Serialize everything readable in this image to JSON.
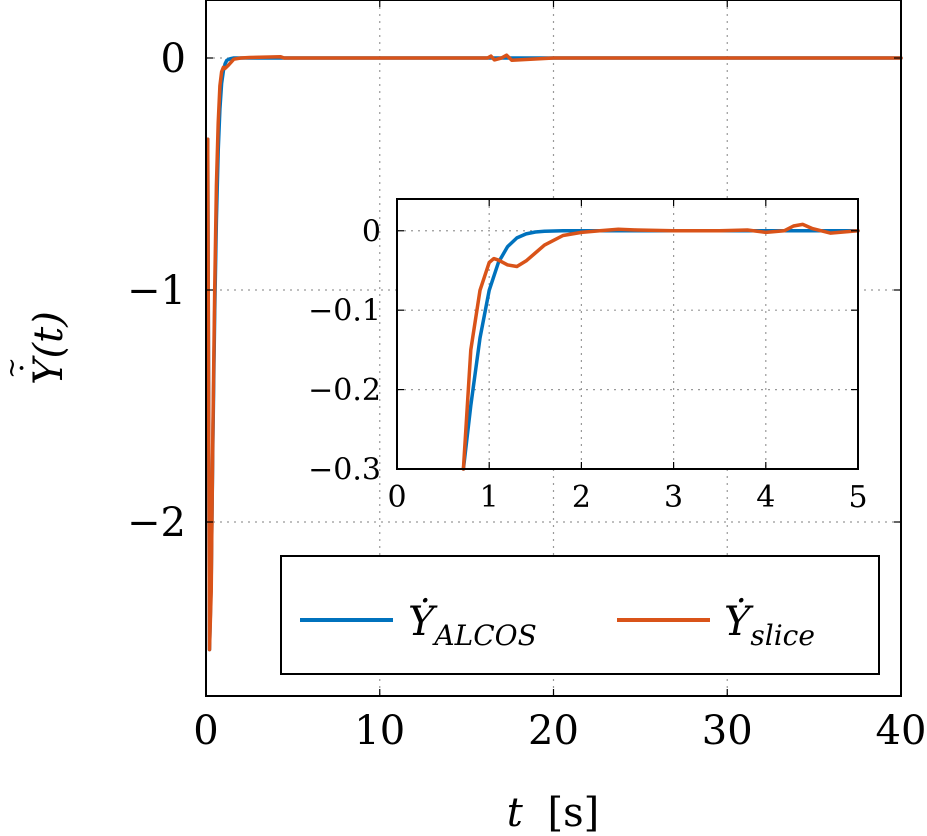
{
  "chart_data": [
    {
      "type": "line",
      "panel": "main",
      "xlabel": "t [s]",
      "ylabel": "Ẏ(t)",
      "xlim": [
        0,
        40
      ],
      "ylim": [
        -2.75,
        0.25
      ],
      "xticks": [
        0,
        10,
        20,
        30,
        40
      ],
      "xtick_labels": [
        "0",
        "10",
        "20",
        "30",
        "40"
      ],
      "yticks": [
        -2,
        -1,
        0
      ],
      "ytick_labels": [
        "−2",
        "−1",
        "0"
      ],
      "grid": "dotted",
      "legend": {
        "placement": "bottom-right",
        "entries": [
          {
            "base": "Ẏ",
            "sub": "ALCOS"
          },
          {
            "base": "Ẏ",
            "sub": "slice"
          }
        ]
      },
      "series": [
        {
          "name": "Ẏ_ALCOS",
          "color": "#0072bd",
          "x": [
            0.1,
            0.2,
            0.3,
            0.4,
            0.5,
            0.6,
            0.7,
            0.8,
            0.9,
            1.0,
            1.1,
            1.2,
            1.4,
            1.6,
            2.0,
            4.0,
            10,
            20,
            30,
            40
          ],
          "y": [
            -0.35,
            -2.55,
            -2.25,
            -1.65,
            -1.1,
            -0.7,
            -0.4,
            -0.22,
            -0.11,
            -0.055,
            -0.025,
            -0.01,
            -0.003,
            0,
            0,
            0,
            0,
            0,
            0,
            0
          ]
        },
        {
          "name": "Ẏ_slice",
          "color": "#d95319",
          "x": [
            0.1,
            0.2,
            0.3,
            0.4,
            0.5,
            0.6,
            0.7,
            0.8,
            0.9,
            1.0,
            1.1,
            1.3,
            1.6,
            2.0,
            2.5,
            4.3,
            4.5,
            10,
            16.2,
            16.4,
            16.6,
            17.0,
            17.3,
            17.6,
            20,
            30,
            40
          ],
          "y": [
            -0.35,
            -2.55,
            -2.3,
            -1.6,
            -1.0,
            -0.55,
            -0.28,
            -0.12,
            -0.06,
            -0.04,
            -0.045,
            -0.03,
            -0.005,
            0,
            0.002,
            0.005,
            0,
            0,
            0,
            0.008,
            -0.008,
            0,
            0.012,
            -0.01,
            0,
            0,
            0
          ]
        }
      ]
    },
    {
      "type": "line",
      "panel": "inset",
      "xlim": [
        0,
        5
      ],
      "ylim": [
        -0.3,
        0.04
      ],
      "xticks": [
        0,
        1,
        2,
        3,
        4,
        5
      ],
      "xtick_labels": [
        "0",
        "1",
        "2",
        "3",
        "4",
        "5"
      ],
      "yticks": [
        -0.3,
        -0.2,
        -0.1,
        0
      ],
      "ytick_labels": [
        "−0.3",
        "−0.2",
        "−0.1",
        "0"
      ],
      "grid": "dotted",
      "series": [
        {
          "name": "Ẏ_ALCOS",
          "color": "#0072bd",
          "x": [
            0.72,
            0.8,
            0.9,
            1.0,
            1.1,
            1.2,
            1.3,
            1.4,
            1.5,
            1.6,
            1.8,
            2.0,
            2.5,
            3.0,
            4.0,
            5.0
          ],
          "y": [
            -0.3,
            -0.22,
            -0.135,
            -0.075,
            -0.04,
            -0.02,
            -0.009,
            -0.004,
            -0.0015,
            -0.0005,
            0,
            0,
            0,
            0,
            0,
            0
          ]
        },
        {
          "name": "Ẏ_slice",
          "color": "#d95319",
          "x": [
            0.72,
            0.8,
            0.9,
            1.0,
            1.05,
            1.1,
            1.2,
            1.3,
            1.4,
            1.5,
            1.6,
            1.8,
            2.0,
            2.2,
            2.4,
            2.6,
            3.0,
            3.5,
            3.8,
            4.0,
            4.2,
            4.3,
            4.4,
            4.5,
            4.7,
            5.0
          ],
          "y": [
            -0.3,
            -0.15,
            -0.075,
            -0.04,
            -0.035,
            -0.037,
            -0.043,
            -0.045,
            -0.038,
            -0.028,
            -0.018,
            -0.006,
            -0.002,
            0,
            0.002,
            0.001,
            0,
            0,
            0.001,
            -0.002,
            0,
            0.006,
            0.008,
            0.003,
            -0.003,
            0
          ]
        }
      ]
    }
  ]
}
